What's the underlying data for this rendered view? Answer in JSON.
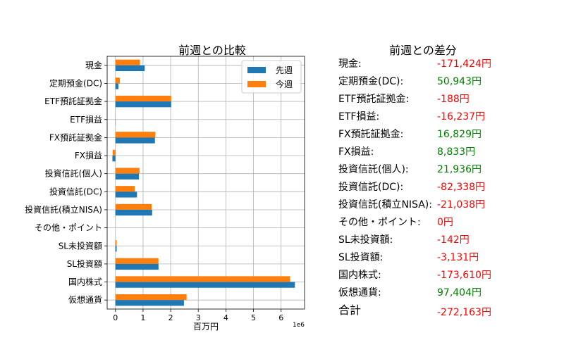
{
  "colors": {
    "prev": "#1f77b4",
    "curr": "#ff7f0e",
    "positive": "#008000",
    "negative": "#ff0000",
    "grid": "#b0b0b0"
  },
  "chart_data": {
    "type": "bar",
    "orientation": "horizontal",
    "title": "前週との比較",
    "xlabel": "百万円",
    "ylabel": "",
    "x_exponent_label": "1e6",
    "xlim": [
      -300000,
      6850000
    ],
    "xticks": [
      0,
      1000000,
      2000000,
      3000000,
      4000000,
      5000000,
      6000000
    ],
    "xtick_labels": [
      "0",
      "1",
      "2",
      "3",
      "4",
      "5",
      "6"
    ],
    "grid": true,
    "legend_position": "top-right",
    "categories": [
      "現金",
      "定期預金(DC)",
      "ETF預託証拠金",
      "ETF損益",
      "FX預託証拠金",
      "FX損益",
      "投資信託(個人)",
      "投資信託(DC)",
      "投資信託(積立NISA)",
      "その他・ポイント",
      "SL未投資額",
      "SL投資額",
      "国内株式",
      "仮想通貨"
    ],
    "series": [
      {
        "name": "先週",
        "values": [
          1060000,
          110000,
          2020000,
          8000,
          1430000,
          -110000,
          850000,
          780000,
          1330000,
          0,
          45000,
          1560000,
          6500000,
          2480000
        ]
      },
      {
        "name": "今週",
        "values": [
          888576,
          160943,
          2019812,
          -8237,
          1446829,
          -101167,
          871936,
          697662,
          1308962,
          0,
          44858,
          1556869,
          6326390,
          2577404
        ]
      }
    ]
  },
  "diff_panel": {
    "title": "前週との差分",
    "rows": [
      {
        "label": "現金:",
        "value": "-171,424円",
        "sign": "negative"
      },
      {
        "label": "定期預金(DC):",
        "value": "50,943円",
        "sign": "positive"
      },
      {
        "label": "ETF預託証拠金:",
        "value": "-188円",
        "sign": "negative"
      },
      {
        "label": "ETF損益:",
        "value": "-16,237円",
        "sign": "negative"
      },
      {
        "label": "FX預託証拠金:",
        "value": "16,829円",
        "sign": "positive"
      },
      {
        "label": "FX損益:",
        "value": "8,833円",
        "sign": "positive"
      },
      {
        "label": "投資信託(個人):",
        "value": "21,936円",
        "sign": "positive"
      },
      {
        "label": "投資信託(DC):",
        "value": "-82,338円",
        "sign": "negative"
      },
      {
        "label": "投資信託(積立NISA):",
        "value": "-21,038円",
        "sign": "negative"
      },
      {
        "label": "その他・ポイント:",
        "value": "0円",
        "sign": "negative"
      },
      {
        "label": "SL未投資額:",
        "value": "-142円",
        "sign": "negative"
      },
      {
        "label": "SL投資額:",
        "value": "-3,131円",
        "sign": "negative"
      },
      {
        "label": "国内株式:",
        "value": "-173,610円",
        "sign": "negative"
      },
      {
        "label": "仮想通貨:",
        "value": "97,404円",
        "sign": "positive"
      }
    ],
    "total_label": "合計",
    "total_value": "-272,163円",
    "total_sign": "negative"
  }
}
